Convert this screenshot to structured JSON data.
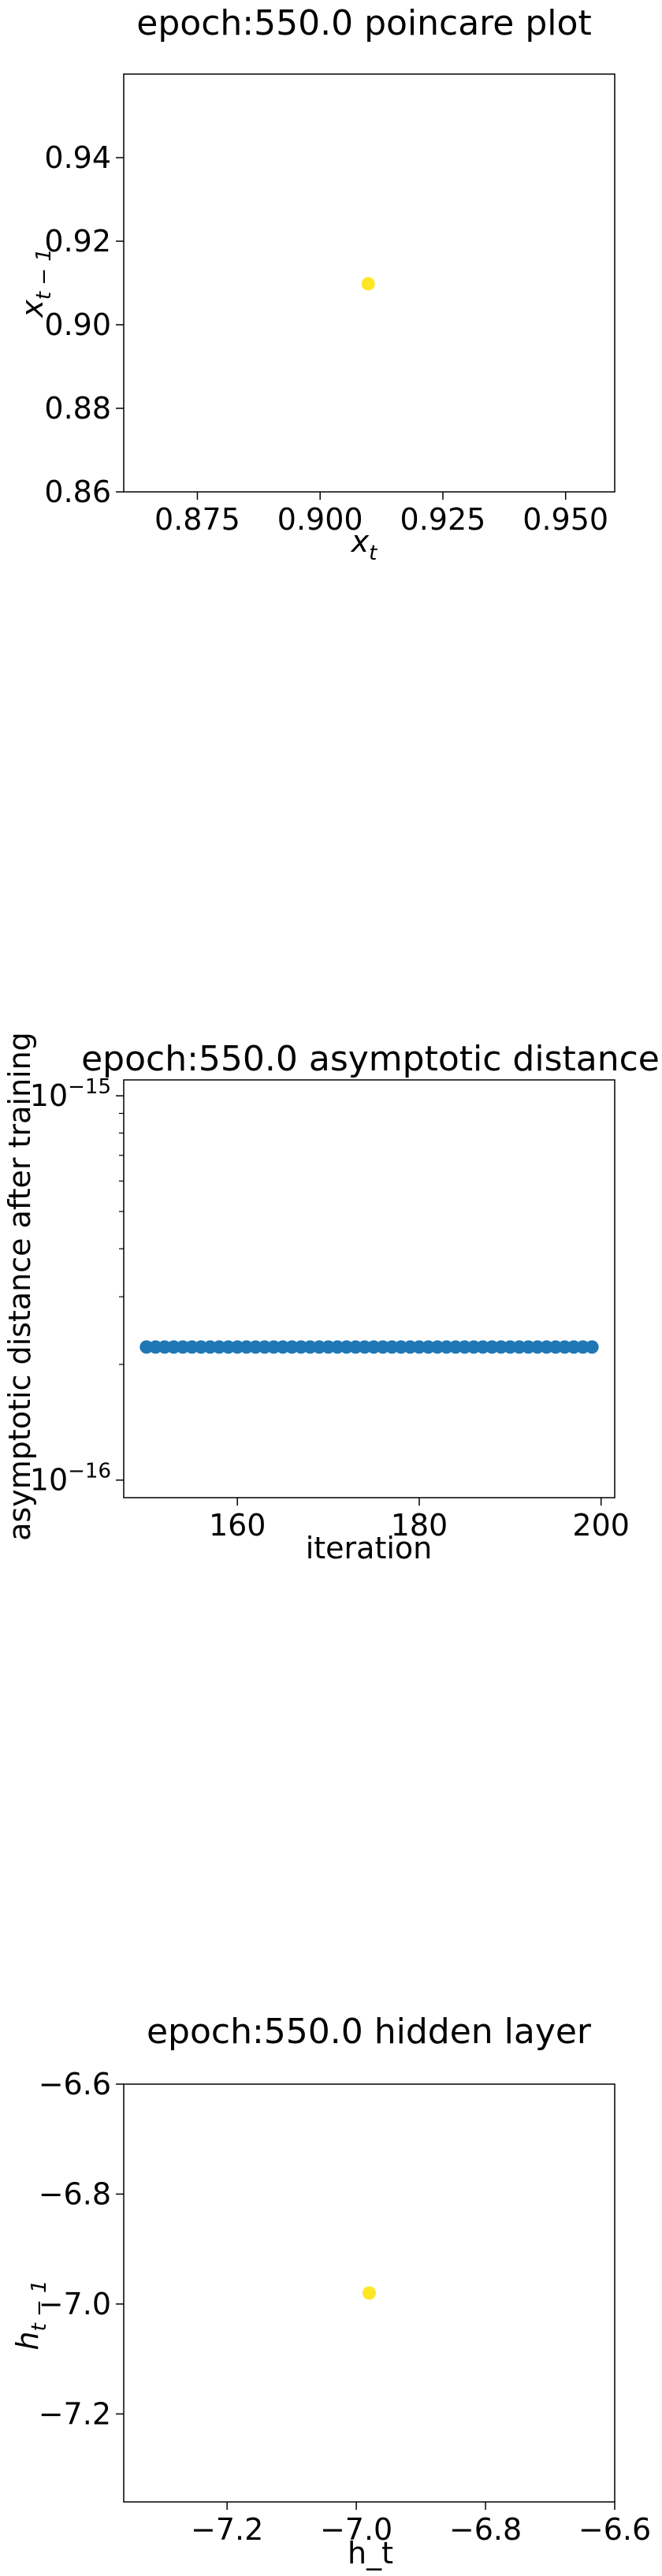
{
  "chart_data": [
    {
      "type": "scatter",
      "title": "epoch:550.0 poincare plot",
      "xlabel": "x",
      "xlabel_sub": "t",
      "ylabel": "x",
      "ylabel_sub": "t − 1",
      "xlim": [
        0.86,
        0.96
      ],
      "ylim": [
        0.86,
        0.96
      ],
      "xticks": [
        0.875,
        0.9,
        0.925,
        0.95
      ],
      "xtick_labels": [
        "0.875",
        "0.900",
        "0.925",
        "0.950"
      ],
      "yticks": [
        0.86,
        0.88,
        0.9,
        0.92,
        0.94
      ],
      "ytick_labels": [
        "0.86",
        "0.88",
        "0.90",
        "0.92",
        "0.94"
      ],
      "point_color": "#fde725",
      "points": [
        {
          "x": 0.9098,
          "y": 0.9098
        }
      ]
    },
    {
      "type": "scatter",
      "title": "epoch:550.0 asymptotic distance",
      "xlabel": "iteration",
      "ylabel": "asymptotic distance after training",
      "xlim": [
        147.5,
        201.5
      ],
      "ylim": [
        9e-17,
        1.1e-15
      ],
      "yscale": "log",
      "xticks": [
        160,
        180,
        200
      ],
      "xtick_labels": [
        "160",
        "180",
        "200"
      ],
      "yticks": [
        1e-16,
        1e-15
      ],
      "ytick_labels": [
        {
          "base": "10",
          "exp": "−16"
        },
        {
          "base": "10",
          "exp": "−15"
        }
      ],
      "point_color": "#1f77b4",
      "x_start": 150,
      "x_end": 199,
      "y_value": 2.22e-16
    },
    {
      "type": "scatter",
      "title": "epoch:550.0 hidden layer",
      "xlabel": "h_t",
      "ylabel": "h",
      "ylabel_sub": "t − 1",
      "xlim": [
        -7.36,
        -6.6
      ],
      "ylim": [
        -7.36,
        -6.6
      ],
      "xticks": [
        -7.2,
        -7.0,
        -6.8,
        -6.6
      ],
      "xtick_labels": [
        "−7.2",
        "−7.0",
        "−6.8",
        "−6.6"
      ],
      "yticks": [
        -7.2,
        -7.0,
        -6.8,
        -6.6
      ],
      "ytick_labels": [
        "−7.2",
        "−7.0",
        "−6.8",
        "−6.6"
      ],
      "point_color": "#fde725",
      "points": [
        {
          "x": -6.98,
          "y": -6.98
        }
      ]
    }
  ]
}
